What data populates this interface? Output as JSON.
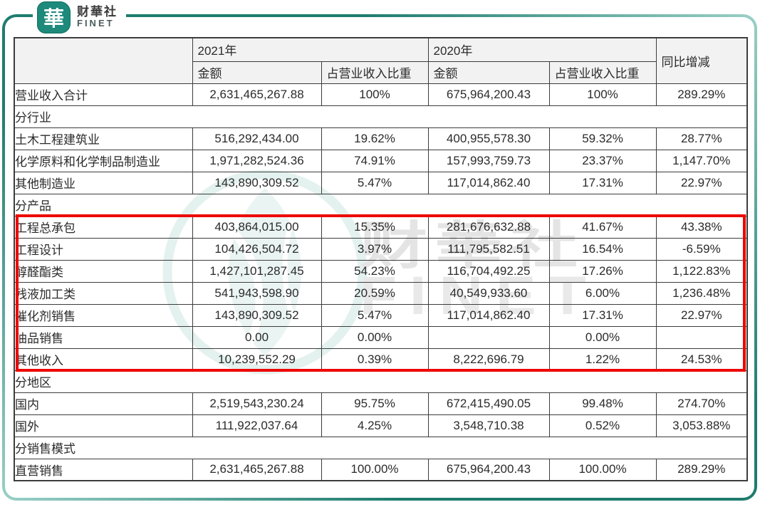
{
  "logo": {
    "badge_glyph": "華",
    "brand_cn": "财華社",
    "brand_en": "FINET"
  },
  "watermark": {
    "brand_cn": "财華社",
    "brand_en": "FINET"
  },
  "colors": {
    "accent_teal": "#1E7C6E",
    "highlight_red": "#EE0600",
    "header_bg": "#F2F2F2"
  },
  "table": {
    "header": {
      "year_2021": "2021年",
      "year_2020": "2020年",
      "yoy": "同比增减",
      "amount": "金额",
      "ratio": "占营业收入比重"
    },
    "rows": [
      {
        "type": "data",
        "cells": [
          "营业收入合计",
          "2,631,465,267.88",
          "100%",
          "675,964,200.43",
          "100%",
          "289.29%"
        ]
      },
      {
        "type": "section",
        "label": "分行业"
      },
      {
        "type": "data",
        "cells": [
          "土木工程建筑业",
          "516,292,434.00",
          "19.62%",
          "400,955,578.30",
          "59.32%",
          "28.77%"
        ]
      },
      {
        "type": "data",
        "cells": [
          "化学原料和化学制品制造业",
          "1,971,282,524.36",
          "74.91%",
          "157,993,759.73",
          "23.37%",
          "1,147.70%"
        ]
      },
      {
        "type": "data",
        "cells": [
          "其他制造业",
          "143,890,309.52",
          "5.47%",
          "117,014,862.40",
          "17.31%",
          "22.97%"
        ]
      },
      {
        "type": "section",
        "label": "分产品"
      },
      {
        "type": "data",
        "highlighted": true,
        "cells": [
          "工程总承包",
          "403,864,015.00",
          "15.35%",
          "281,676,632.88",
          "41.67%",
          "43.38%"
        ]
      },
      {
        "type": "data",
        "highlighted": true,
        "cells": [
          "工程设计",
          "104,426,504.72",
          "3.97%",
          "111,795,582.51",
          "16.54%",
          "-6.59%"
        ]
      },
      {
        "type": "data",
        "highlighted": true,
        "cells": [
          "醇醛酯类",
          "1,427,101,287.45",
          "54.23%",
          "116,704,492.25",
          "17.26%",
          "1,122.83%"
        ]
      },
      {
        "type": "data",
        "highlighted": true,
        "cells": [
          "残液加工类",
          "541,943,598.90",
          "20.59%",
          "40,549,933.60",
          "6.00%",
          "1,236.48%"
        ]
      },
      {
        "type": "data",
        "highlighted": true,
        "cells": [
          "催化剂销售",
          "143,890,309.52",
          "5.47%",
          "117,014,862.40",
          "17.31%",
          "22.97%"
        ]
      },
      {
        "type": "data",
        "highlighted": true,
        "cells": [
          "油品销售",
          "0.00",
          "0.00%",
          "",
          "0.00%",
          ""
        ]
      },
      {
        "type": "data",
        "highlighted": true,
        "cells": [
          "其他收入",
          "10,239,552.29",
          "0.39%",
          "8,222,696.79",
          "1.22%",
          "24.53%"
        ]
      },
      {
        "type": "section",
        "label": "分地区"
      },
      {
        "type": "data",
        "cells": [
          "国内",
          "2,519,543,230.24",
          "95.75%",
          "672,415,490.05",
          "99.48%",
          "274.70%"
        ]
      },
      {
        "type": "data",
        "cells": [
          "国外",
          "111,922,037.64",
          "4.25%",
          "3,548,710.38",
          "0.52%",
          "3,053.88%"
        ]
      },
      {
        "type": "section",
        "label": "分销售模式"
      },
      {
        "type": "data",
        "cells": [
          "直营销售",
          "2,631,465,267.88",
          "100.00%",
          "675,964,200.43",
          "100.00%",
          "289.29%"
        ]
      }
    ]
  }
}
